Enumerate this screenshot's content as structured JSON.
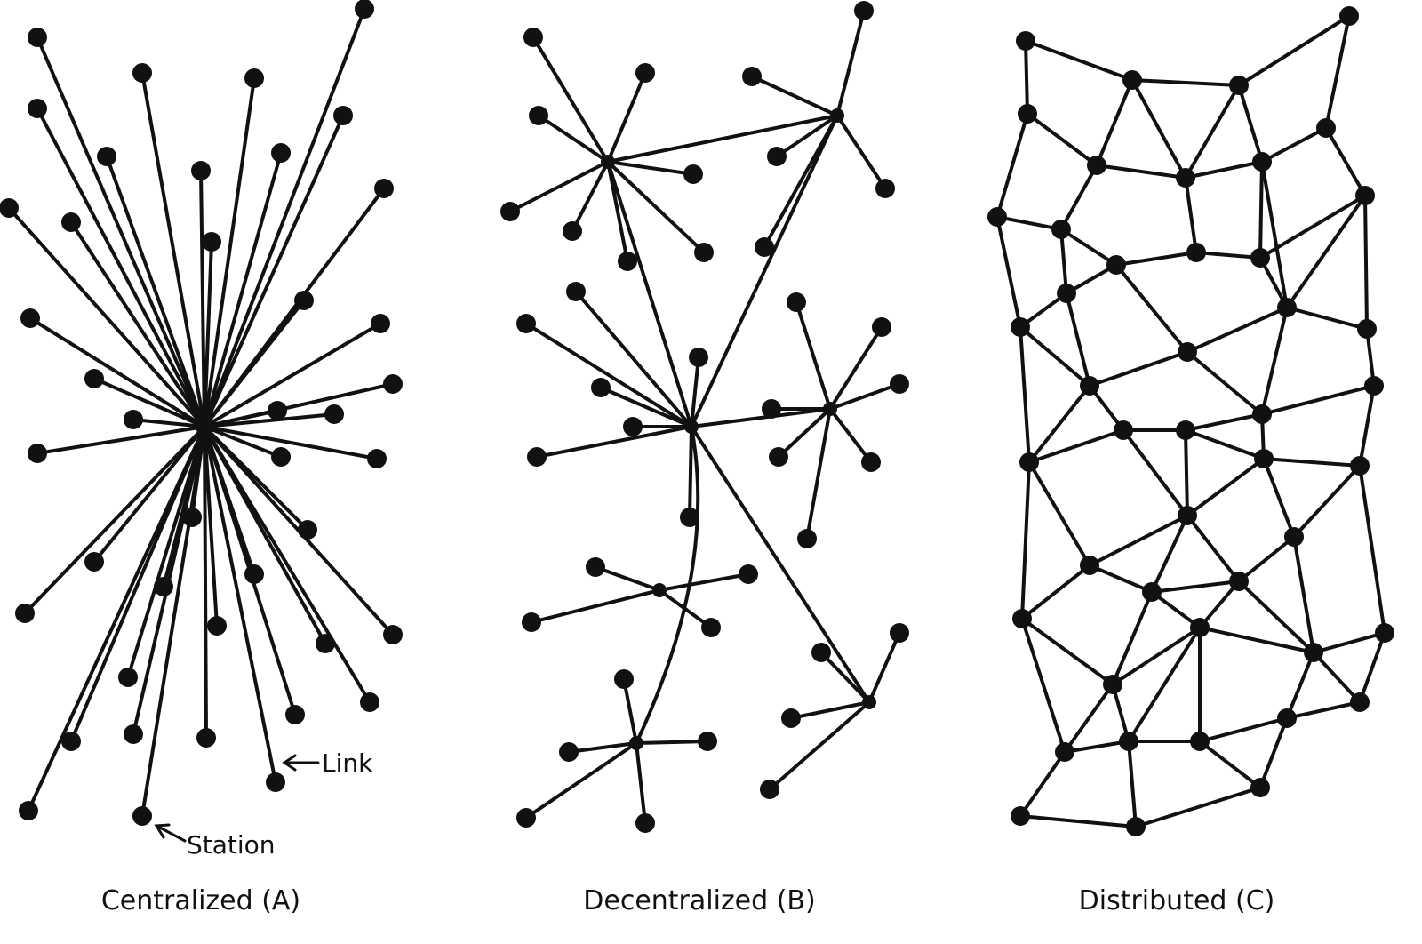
{
  "diagrams": [
    {
      "id": "centralized",
      "caption": "Centralized (A)"
    },
    {
      "id": "decentralized",
      "caption": "Decentralized (B)"
    },
    {
      "id": "distributed",
      "caption": "Distributed (C)"
    }
  ],
  "callouts": {
    "link": "Link",
    "station": "Station"
  },
  "colors": {
    "ink": "#111111",
    "background": "#ffffff"
  }
}
